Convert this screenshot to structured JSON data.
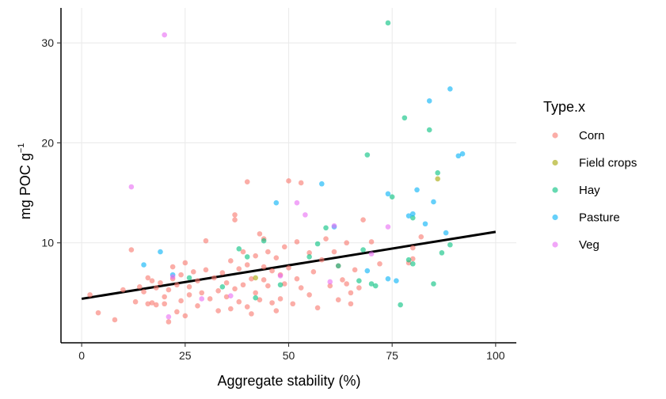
{
  "chart_data": {
    "type": "scatter",
    "title": "",
    "xlabel": "Aggregate stability (%)",
    "ylabel": "mg POC g",
    "ylabel_superscript": "−1",
    "xlim": [
      -5,
      105
    ],
    "ylim": [
      0,
      33.5
    ],
    "xticks": [
      0,
      25,
      50,
      75,
      100
    ],
    "yticks": [
      10,
      20,
      30
    ],
    "grid": true,
    "legend": {
      "title": "Type.x",
      "placement": "right"
    },
    "trend_line": {
      "x": [
        0,
        100
      ],
      "y": [
        4.4,
        11.1
      ]
    },
    "series": [
      {
        "name": "Corn",
        "color": "#F8766D",
        "points": [
          [
            2,
            4.8
          ],
          [
            4,
            3.0
          ],
          [
            8,
            2.3
          ],
          [
            10,
            5.3
          ],
          [
            12,
            9.3
          ],
          [
            13,
            4.1
          ],
          [
            14,
            5.6
          ],
          [
            15,
            5.1
          ],
          [
            16,
            3.9
          ],
          [
            16,
            6.5
          ],
          [
            17,
            4.0
          ],
          [
            17,
            6.2
          ],
          [
            18,
            5.5
          ],
          [
            18,
            3.8
          ],
          [
            19,
            6.0
          ],
          [
            20,
            4.6
          ],
          [
            20,
            3.9
          ],
          [
            21,
            5.3
          ],
          [
            21,
            2.1
          ],
          [
            22,
            6.4
          ],
          [
            22,
            7.6
          ],
          [
            23,
            3.1
          ],
          [
            23,
            5.8
          ],
          [
            24,
            4.2
          ],
          [
            24,
            6.8
          ],
          [
            25,
            8.0
          ],
          [
            25,
            2.7
          ],
          [
            26,
            4.8
          ],
          [
            26,
            5.6
          ],
          [
            27,
            7.1
          ],
          [
            28,
            6.2
          ],
          [
            28,
            3.7
          ],
          [
            29,
            5.0
          ],
          [
            30,
            7.3
          ],
          [
            30,
            10.2
          ],
          [
            31,
            4.4
          ],
          [
            32,
            6.5
          ],
          [
            33,
            5.2
          ],
          [
            33,
            3.2
          ],
          [
            34,
            7.0
          ],
          [
            35,
            4.6
          ],
          [
            35,
            6.0
          ],
          [
            36,
            8.2
          ],
          [
            36,
            3.4
          ],
          [
            37,
            5.4
          ],
          [
            37,
            12.3
          ],
          [
            37,
            12.8
          ],
          [
            38,
            7.4
          ],
          [
            38,
            4.1
          ],
          [
            39,
            9.1
          ],
          [
            39,
            5.8
          ],
          [
            40,
            7.8
          ],
          [
            40,
            3.6
          ],
          [
            40,
            16.1
          ],
          [
            41,
            6.4
          ],
          [
            41,
            2.9
          ],
          [
            42,
            8.7
          ],
          [
            42,
            5.0
          ],
          [
            43,
            4.3
          ],
          [
            43,
            10.9
          ],
          [
            44,
            7.6
          ],
          [
            44,
            6.3
          ],
          [
            44,
            10.4
          ],
          [
            45,
            5.7
          ],
          [
            45,
            9.1
          ],
          [
            46,
            4.0
          ],
          [
            46,
            7.2
          ],
          [
            47,
            8.5
          ],
          [
            47,
            3.2
          ],
          [
            48,
            6.8
          ],
          [
            48,
            4.4
          ],
          [
            49,
            9.6
          ],
          [
            49,
            5.9
          ],
          [
            50,
            16.2
          ],
          [
            50,
            7.5
          ],
          [
            51,
            3.9
          ],
          [
            52,
            10.1
          ],
          [
            52,
            6.4
          ],
          [
            53,
            5.5
          ],
          [
            53,
            16.0
          ],
          [
            55,
            9.0
          ],
          [
            55,
            4.8
          ],
          [
            56,
            7.1
          ],
          [
            57,
            3.5
          ],
          [
            58,
            8.3
          ],
          [
            59,
            10.4
          ],
          [
            60,
            5.7
          ],
          [
            61,
            9.1
          ],
          [
            62,
            4.3
          ],
          [
            62,
            7.7
          ],
          [
            63,
            6.3
          ],
          [
            64,
            5.9
          ],
          [
            64,
            10.0
          ],
          [
            65,
            3.9
          ],
          [
            65,
            5.0
          ],
          [
            66,
            7.3
          ],
          [
            67,
            5.5
          ],
          [
            68,
            12.3
          ],
          [
            70,
            10.1
          ],
          [
            72,
            7.9
          ],
          [
            79,
            8.0
          ],
          [
            80,
            9.5
          ],
          [
            80,
            8.4
          ],
          [
            82,
            10.6
          ]
        ]
      },
      {
        "name": "Field crops",
        "color": "#A3A500",
        "points": [
          [
            42,
            6.5
          ],
          [
            86,
            16.4
          ]
        ]
      },
      {
        "name": "Hay",
        "color": "#00BF7D",
        "points": [
          [
            26,
            6.5
          ],
          [
            34,
            5.6
          ],
          [
            38,
            9.4
          ],
          [
            40,
            8.6
          ],
          [
            42,
            4.5
          ],
          [
            44,
            10.2
          ],
          [
            48,
            5.8
          ],
          [
            55,
            8.6
          ],
          [
            57,
            9.9
          ],
          [
            59,
            11.5
          ],
          [
            62,
            7.7
          ],
          [
            67,
            6.2
          ],
          [
            68,
            9.3
          ],
          [
            69,
            18.8
          ],
          [
            70,
            5.9
          ],
          [
            71,
            5.7
          ],
          [
            74,
            32.0
          ],
          [
            75,
            14.6
          ],
          [
            77,
            3.8
          ],
          [
            78,
            22.5
          ],
          [
            79,
            8.3
          ],
          [
            80,
            12.5
          ],
          [
            80,
            7.9
          ],
          [
            84,
            21.3
          ],
          [
            85,
            5.9
          ],
          [
            86,
            17.0
          ],
          [
            87,
            9.0
          ],
          [
            89,
            9.8
          ]
        ]
      },
      {
        "name": "Pasture",
        "color": "#00B0F6",
        "points": [
          [
            15,
            7.8
          ],
          [
            19,
            9.1
          ],
          [
            22,
            6.8
          ],
          [
            47,
            14.0
          ],
          [
            58,
            15.9
          ],
          [
            61,
            11.6
          ],
          [
            69,
            7.2
          ],
          [
            74,
            6.4
          ],
          [
            74,
            14.9
          ],
          [
            76,
            6.2
          ],
          [
            79,
            12.7
          ],
          [
            80,
            12.9
          ],
          [
            81,
            15.3
          ],
          [
            83,
            11.9
          ],
          [
            84,
            24.2
          ],
          [
            85,
            14.1
          ],
          [
            88,
            11.0
          ],
          [
            89,
            25.4
          ],
          [
            91,
            18.7
          ],
          [
            92,
            18.9
          ]
        ]
      },
      {
        "name": "Veg",
        "color": "#E76BF3",
        "points": [
          [
            12,
            15.6
          ],
          [
            20,
            30.8
          ],
          [
            21,
            2.6
          ],
          [
            22,
            6.6
          ],
          [
            29,
            4.4
          ],
          [
            36,
            4.7
          ],
          [
            48,
            6.7
          ],
          [
            52,
            14.0
          ],
          [
            54,
            12.8
          ],
          [
            60,
            6.1
          ],
          [
            61,
            11.7
          ],
          [
            70,
            8.9
          ],
          [
            74,
            11.6
          ]
        ]
      }
    ]
  }
}
